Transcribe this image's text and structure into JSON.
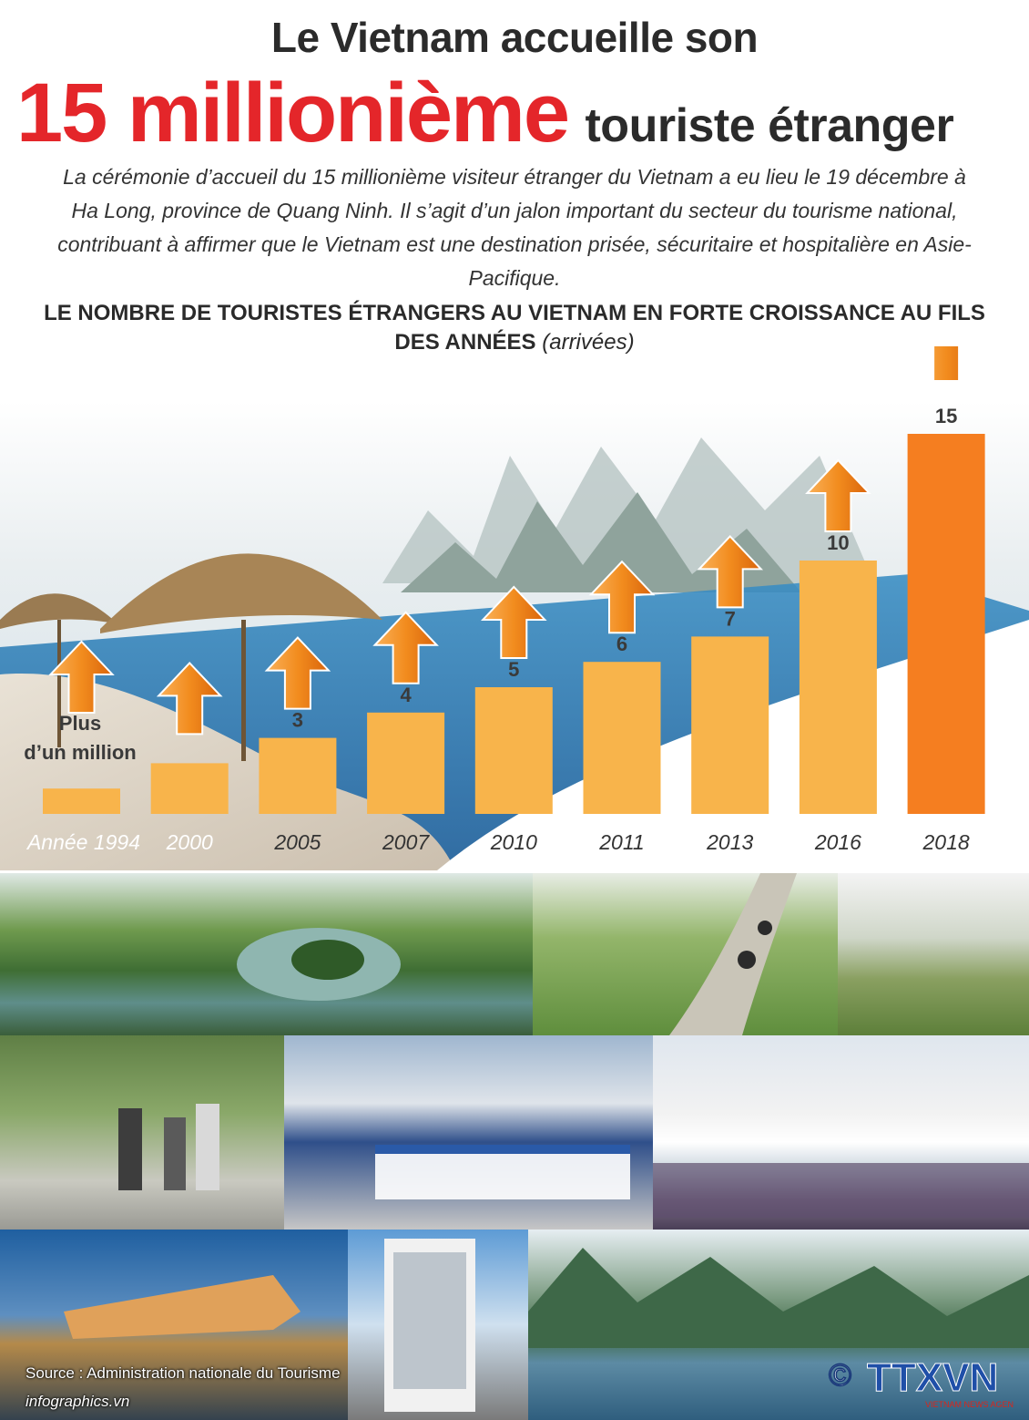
{
  "header": {
    "title_line1": "Le Vietnam accueille son",
    "title_big": "15 millionième",
    "title_rest": "touriste étranger",
    "intro": "La cérémonie d’accueil du 15 millionième visiteur étranger du Vietnam a eu lieu le 19 décembre à Ha Long, province de Quang Ninh. Il s’agit d’un jalon important du secteur du tourisme national, contribuant à affirmer que le Vietnam est une destination prisée, sécuritaire et hospitalière en Asie-Pacifique."
  },
  "chart_data": {
    "type": "bar",
    "title": "LE NOMBRE DE TOURISTES ÉTRANGERS AU VIETNAM EN FORTE CROISSANCE AU FILS DES ANNÉES",
    "unit": "(arrivées)",
    "categories": [
      "Année 1994",
      "2000",
      "2005",
      "2007",
      "2010",
      "2011",
      "2013",
      "2016",
      "2018"
    ],
    "values": [
      1,
      2,
      3,
      4,
      5,
      6,
      7,
      10,
      15
    ],
    "value_labels": [
      "Plus d’un million",
      "",
      "3",
      "4",
      "5",
      "6",
      "7",
      "10",
      "15"
    ],
    "ylim": [
      0,
      15
    ],
    "colors": {
      "bar": "#f8b44b",
      "highlight": "#f57e20",
      "arrow": "#f28c1e"
    }
  },
  "footer": {
    "source": "Source : Administration nationale du Tourisme",
    "site": "infographics.vn",
    "copyright": "©",
    "logo_text": "TTXVN",
    "logo_sub": "VIETNAM NEWS AGENCY"
  }
}
